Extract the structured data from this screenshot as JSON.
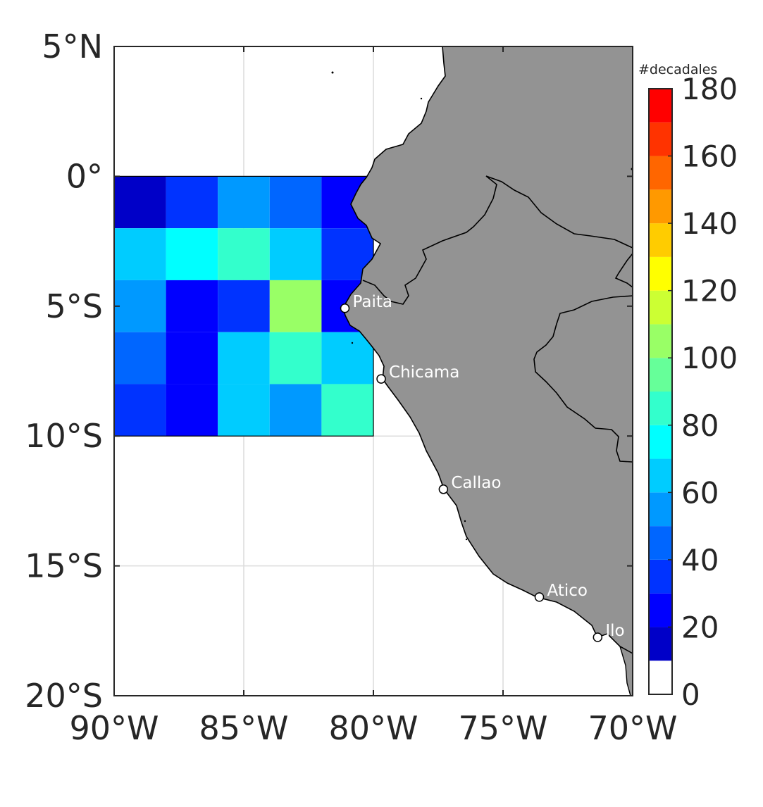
{
  "map": {
    "region": {
      "lon": [
        -90,
        -70
      ],
      "lat": [
        -20,
        5
      ]
    },
    "lon_ticks": [
      {
        "value": -90,
        "label": "90°W"
      },
      {
        "value": -85,
        "label": "85°W"
      },
      {
        "value": -80,
        "label": "80°W"
      },
      {
        "value": -75,
        "label": "75°W"
      },
      {
        "value": -70,
        "label": "70°W"
      }
    ],
    "lat_ticks": [
      {
        "value": 5,
        "label": "5°N"
      },
      {
        "value": 0,
        "label": "0°"
      },
      {
        "value": -5,
        "label": "5°S"
      },
      {
        "value": -10,
        "label": "10°S"
      },
      {
        "value": -15,
        "label": "15°S"
      },
      {
        "value": -20,
        "label": "20°S"
      }
    ],
    "grid": true,
    "land_color": "#939393",
    "grid_lon_edges": [
      -90,
      -88,
      -86,
      -84,
      -82,
      -80
    ],
    "grid_lat_edges": [
      0,
      -2,
      -4,
      -6,
      -8,
      -10
    ],
    "grid_values": [
      [
        15,
        35,
        55,
        45,
        25
      ],
      [
        65,
        75,
        85,
        65,
        35
      ],
      [
        55,
        25,
        35,
        105,
        25
      ],
      [
        45,
        25,
        65,
        85,
        65
      ],
      [
        35,
        25,
        65,
        55,
        85
      ]
    ],
    "cities": [
      {
        "name": "Paita",
        "lon": -81.1,
        "lat": -5.08
      },
      {
        "name": "Chicama",
        "lon": -79.7,
        "lat": -7.8
      },
      {
        "name": "Callao",
        "lon": -77.3,
        "lat": -12.05
      },
      {
        "name": "Atico",
        "lon": -73.6,
        "lat": -16.2
      },
      {
        "name": "Ilo",
        "lon": -71.35,
        "lat": -17.75
      }
    ]
  },
  "colorbar": {
    "title": "#decadales",
    "min": 0,
    "max": 180,
    "step": 10,
    "tick_labels": [
      "0",
      "20",
      "40",
      "60",
      "80",
      "100",
      "120",
      "140",
      "160",
      "180"
    ],
    "colors": [
      "#ffffff",
      "#0000c8",
      "#0000ff",
      "#0033ff",
      "#0066ff",
      "#0099ff",
      "#00ccff",
      "#00ffff",
      "#33ffcc",
      "#66ff99",
      "#99ff66",
      "#ccff33",
      "#ffff00",
      "#ffcc00",
      "#ff9900",
      "#ff6600",
      "#ff3300",
      "#ff0000"
    ]
  }
}
